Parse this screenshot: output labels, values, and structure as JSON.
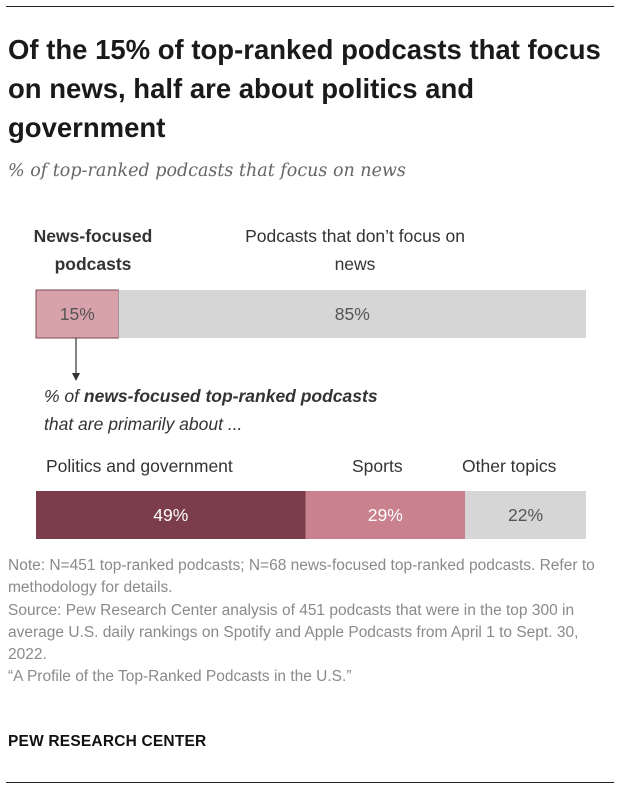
{
  "title": "Of the 15% of top-ranked podcasts that focus on news, half are about politics and government",
  "subtitle": "% of top-ranked podcasts that focus on news",
  "sub_prompt": {
    "prefix": "% of ",
    "bold": "news-focused top-ranked podcasts",
    "suffix": "that are primarily about ..."
  },
  "chart_data": [
    {
      "type": "bar",
      "orientation": "horizontal-stacked",
      "title": "% of top-ranked podcasts that focus on news",
      "categories": [
        "News-focused podcasts",
        "Podcasts that don’t focus on news"
      ],
      "values": [
        15,
        85
      ],
      "labels": [
        "15%",
        "85%"
      ],
      "colors": [
        "#d8a2ab",
        "#d6d6d6"
      ],
      "xlim": [
        0,
        100
      ]
    },
    {
      "type": "bar",
      "orientation": "horizontal-stacked",
      "title": "% of news-focused top-ranked podcasts that are primarily about ...",
      "categories": [
        "Politics and government",
        "Sports",
        "Other topics"
      ],
      "values": [
        49,
        29,
        22
      ],
      "labels": [
        "49%",
        "29%",
        "22%"
      ],
      "colors": [
        "#7c3d4a",
        "#c8818d",
        "#d6d6d6"
      ],
      "label_colors": [
        "#ffffff",
        "#ffffff",
        "#555555"
      ],
      "xlim": [
        0,
        100
      ]
    }
  ],
  "notes": {
    "note": "Note: N=451 top-ranked podcasts; N=68 news-focused top-ranked podcasts. Refer to methodology for details.",
    "source": "Source: Pew Research Center analysis of 451 podcasts that were in the top 300 in average U.S. daily rankings on Spotify and Apple Podcasts from April 1 to Sept. 30, 2022.",
    "report": "“A Profile of the Top-Ranked Podcasts in the U.S.”"
  },
  "brand": "PEW RESEARCH CENTER"
}
